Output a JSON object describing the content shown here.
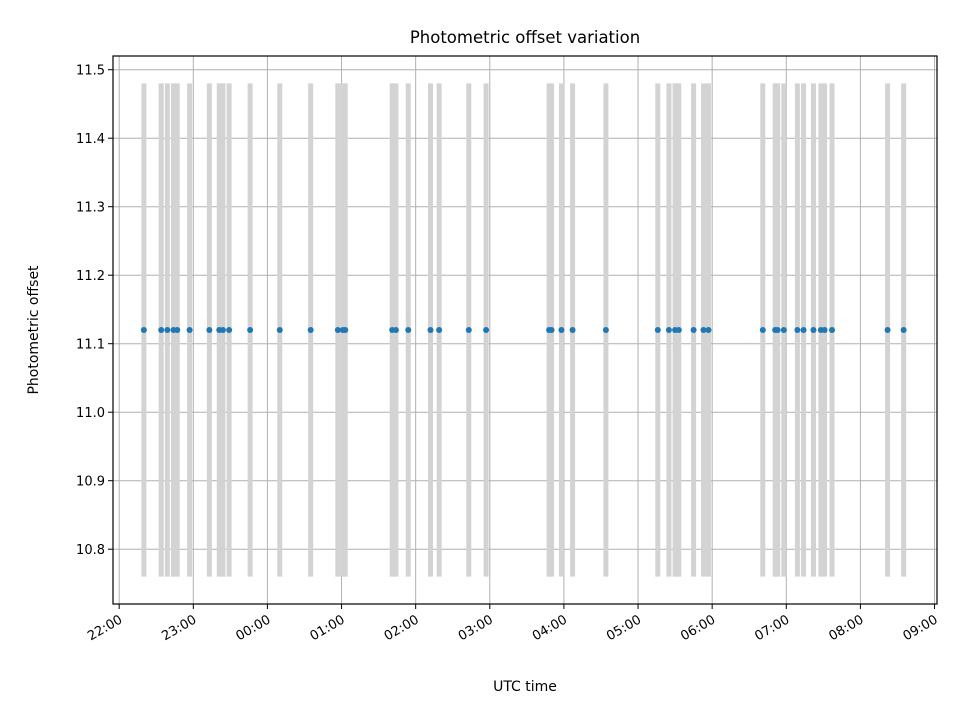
{
  "chart_data": {
    "type": "scatter",
    "title": "Photometric offset variation",
    "xlabel": "UTC time",
    "ylabel": "Photometric offset",
    "xlim": [
      "2023-01-01T21:55",
      "2023-01-02T09:02"
    ],
    "ylim": [
      10.72,
      11.52
    ],
    "x_ticks": [
      "22:00",
      "23:00",
      "00:00",
      "01:00",
      "02:00",
      "03:00",
      "04:00",
      "05:00",
      "06:00",
      "07:00",
      "08:00",
      "09:00"
    ],
    "y_ticks": [
      "10.8",
      "10.9",
      "11.0",
      "11.1",
      "11.2",
      "11.3",
      "11.4",
      "11.5"
    ],
    "grid": true,
    "marker_color": "#1f77b4",
    "band_color": "#d3d3d3",
    "band_range": [
      10.76,
      11.48
    ],
    "y_value": 11.12,
    "x": [
      "2023-01-01T22:20",
      "2023-01-01T22:34",
      "2023-01-01T22:39",
      "2023-01-01T22:44",
      "2023-01-01T22:47",
      "2023-01-01T22:57",
      "2023-01-01T23:13",
      "2023-01-01T23:21",
      "2023-01-01T23:24",
      "2023-01-01T23:29",
      "2023-01-01T23:46",
      "2023-01-02T00:10",
      "2023-01-02T00:35",
      "2023-01-02T00:57",
      "2023-01-02T01:01",
      "2023-01-02T01:03",
      "2023-01-02T01:41",
      "2023-01-02T01:44",
      "2023-01-02T01:54",
      "2023-01-02T02:12",
      "2023-01-02T02:19",
      "2023-01-02T02:43",
      "2023-01-02T02:57",
      "2023-01-02T03:48",
      "2023-01-02T03:50",
      "2023-01-02T03:58",
      "2023-01-02T04:07",
      "2023-01-02T04:34",
      "2023-01-02T05:16",
      "2023-01-02T05:25",
      "2023-01-02T05:30",
      "2023-01-02T05:33",
      "2023-01-02T05:45",
      "2023-01-02T05:53",
      "2023-01-02T05:57",
      "2023-01-02T06:41",
      "2023-01-02T06:51",
      "2023-01-02T06:53",
      "2023-01-02T06:58",
      "2023-01-02T07:09",
      "2023-01-02T07:14",
      "2023-01-02T07:22",
      "2023-01-02T07:28",
      "2023-01-02T07:31",
      "2023-01-02T07:37",
      "2023-01-02T08:22",
      "2023-01-02T08:35"
    ],
    "y": [
      11.12,
      11.12,
      11.12,
      11.12,
      11.12,
      11.12,
      11.12,
      11.12,
      11.12,
      11.12,
      11.12,
      11.12,
      11.12,
      11.12,
      11.12,
      11.12,
      11.12,
      11.12,
      11.12,
      11.12,
      11.12,
      11.12,
      11.12,
      11.12,
      11.12,
      11.12,
      11.12,
      11.12,
      11.12,
      11.12,
      11.12,
      11.12,
      11.12,
      11.12,
      11.12,
      11.12,
      11.12,
      11.12,
      11.12,
      11.12,
      11.12,
      11.12,
      11.12,
      11.12,
      11.12,
      11.12,
      11.12
    ]
  }
}
